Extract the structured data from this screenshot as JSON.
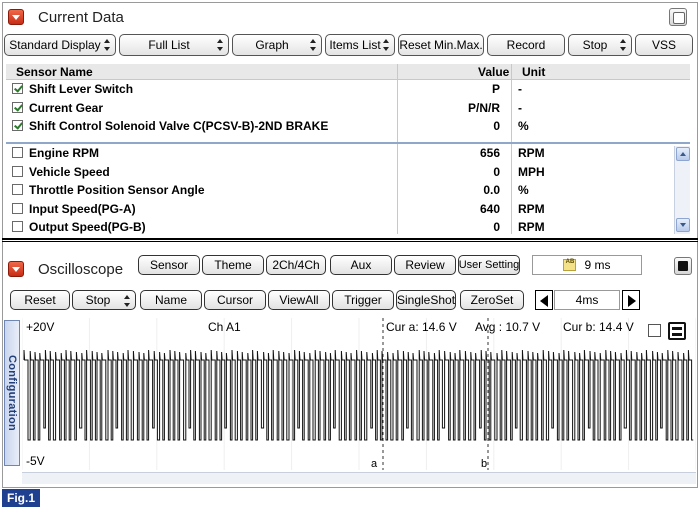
{
  "current_data": {
    "title": "Current Data",
    "toolbar": [
      {
        "label": "Standard Display",
        "dropdown": true,
        "w": 112
      },
      {
        "label": "Full List",
        "dropdown": true,
        "w": 110
      },
      {
        "label": "Graph",
        "dropdown": true,
        "w": 90
      },
      {
        "label": "Items List",
        "dropdown": true,
        "w": 70
      },
      {
        "label": "Reset Min.Max.",
        "dropdown": false,
        "w": 86
      },
      {
        "label": "Record",
        "dropdown": false,
        "w": 78
      },
      {
        "label": "Stop",
        "dropdown": true,
        "w": 64
      },
      {
        "label": "VSS",
        "dropdown": false,
        "w": 58
      }
    ],
    "columns": {
      "name": "Sensor Name",
      "value": "Value",
      "unit": "Unit"
    },
    "selected_rows": [
      {
        "name": "Shift Lever Switch",
        "value": "P",
        "unit": "-",
        "checked": true
      },
      {
        "name": "Current Gear",
        "value": "P/N/R",
        "unit": "-",
        "checked": true
      },
      {
        "name": "Shift Control Solenoid Valve C(PCSV-B)-2ND BRAKE",
        "value": "0",
        "unit": "%",
        "checked": true
      }
    ],
    "rows": [
      {
        "name": "Engine RPM",
        "value": "656",
        "unit": "RPM",
        "checked": false
      },
      {
        "name": "Vehicle Speed",
        "value": "0",
        "unit": "MPH",
        "checked": false
      },
      {
        "name": "Throttle Position Sensor Angle",
        "value": "0.0",
        "unit": "%",
        "checked": false
      },
      {
        "name": "Input Speed(PG-A)",
        "value": "640",
        "unit": "RPM",
        "checked": false
      },
      {
        "name": "Output Speed(PG-B)",
        "value": "0",
        "unit": "RPM",
        "checked": false
      }
    ]
  },
  "oscilloscope": {
    "title": "Oscilloscope",
    "top_buttons": [
      "Sensor",
      "Theme",
      "2Ch/4Ch",
      "Aux",
      "Review",
      "User Setting"
    ],
    "sample_time": "9 ms",
    "ab_icon": "AB",
    "bottom_buttons": [
      {
        "label": "Reset",
        "dropdown": false
      },
      {
        "label": "Stop",
        "dropdown": true
      },
      {
        "label": "Name",
        "dropdown": false
      },
      {
        "label": "Cursor",
        "dropdown": false
      },
      {
        "label": "ViewAll",
        "dropdown": false
      },
      {
        "label": "Trigger",
        "dropdown": false
      },
      {
        "label": "SingleShot",
        "dropdown": false
      },
      {
        "label": "ZeroSet",
        "dropdown": false
      }
    ],
    "time_div": "4ms",
    "side_tab": "Configuration",
    "scope": {
      "top_voltage": "+20V",
      "bottom_voltage": "-5V",
      "channel": "Ch A1",
      "cur_a": "Cur a: 14.6 V",
      "avg": "Avg : 10.7 V",
      "cur_b": "Cur b: 14.4 V",
      "cursor_a_label": "a",
      "cursor_b_label": "b"
    }
  },
  "figure_label": "Fig.1",
  "colors": {
    "accent_red": "#d8341a",
    "separator_blue": "#8fa7c8",
    "fig_tag": "#1f3f8f",
    "config_tab_text": "#233f7a"
  }
}
